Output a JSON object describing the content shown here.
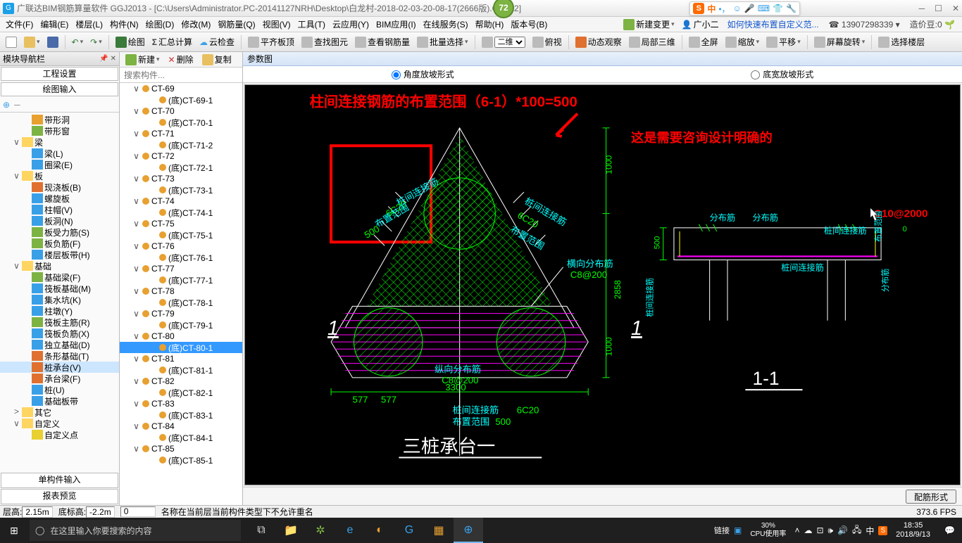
{
  "title": {
    "app": "广联达BIM钢筋算量软件 GGJ2013 - [C:\\Users\\Administrator.PC-20141127NRH\\Desktop\\白龙村-2018-02-03-20-08-17(2666版).GGJ12]",
    "badge": "72"
  },
  "menu": {
    "items": [
      "文件(F)",
      "编辑(E)",
      "楼层(L)",
      "构件(N)",
      "绘图(D)",
      "修改(M)",
      "钢筋量(Q)",
      "视图(V)",
      "工具(T)",
      "云应用(Y)",
      "BIM应用(I)",
      "在线服务(S)",
      "帮助(H)",
      "版本号(B)"
    ],
    "newChange": "新建变更",
    "user": "广小二",
    "helpLink": "如何快速布置自定义范...",
    "phone": "13907298339",
    "beans_label": "造价豆:",
    "beans_value": "0"
  },
  "toolbar": {
    "a": [
      "绘图",
      "汇总计算",
      "云检查",
      "平齐板顶",
      "查找图元",
      "查看钢筋量",
      "批量选择"
    ],
    "b_sel": "二维",
    "b": [
      "俯视",
      "动态观察",
      "局部三维",
      "全屏",
      "缩放",
      "平移",
      "屏幕旋转",
      "选择楼层"
    ]
  },
  "leftPane": {
    "title": "模块导航栏",
    "tab1": "工程设置",
    "tab2": "绘图输入",
    "tree": [
      {
        "d": 2,
        "e": "",
        "i": "#e8a030",
        "t": "带形洞"
      },
      {
        "d": 2,
        "e": "",
        "i": "#7cb342",
        "t": "带形窗"
      },
      {
        "d": 1,
        "e": "∨",
        "i": "#ffd561",
        "t": "梁"
      },
      {
        "d": 2,
        "e": "",
        "i": "#39a0e8",
        "t": "梁(L)"
      },
      {
        "d": 2,
        "e": "",
        "i": "#39a0e8",
        "t": "圈梁(E)"
      },
      {
        "d": 1,
        "e": "∨",
        "i": "#ffd561",
        "t": "板"
      },
      {
        "d": 2,
        "e": "",
        "i": "#e07030",
        "t": "现浇板(B)"
      },
      {
        "d": 2,
        "e": "",
        "i": "#39a0e8",
        "t": "螺旋板"
      },
      {
        "d": 2,
        "e": "",
        "i": "#39a0e8",
        "t": "柱帽(V)"
      },
      {
        "d": 2,
        "e": "",
        "i": "#39a0e8",
        "t": "板洞(N)"
      },
      {
        "d": 2,
        "e": "",
        "i": "#7cb342",
        "t": "板受力筋(S)"
      },
      {
        "d": 2,
        "e": "",
        "i": "#7cb342",
        "t": "板负筋(F)"
      },
      {
        "d": 2,
        "e": "",
        "i": "#39a0e8",
        "t": "楼层板带(H)"
      },
      {
        "d": 1,
        "e": "∨",
        "i": "#ffd561",
        "t": "基础"
      },
      {
        "d": 2,
        "e": "",
        "i": "#7cb342",
        "t": "基础梁(F)"
      },
      {
        "d": 2,
        "e": "",
        "i": "#39a0e8",
        "t": "筏板基础(M)"
      },
      {
        "d": 2,
        "e": "",
        "i": "#39a0e8",
        "t": "集水坑(K)"
      },
      {
        "d": 2,
        "e": "",
        "i": "#39a0e8",
        "t": "柱墩(Y)"
      },
      {
        "d": 2,
        "e": "",
        "i": "#7cb342",
        "t": "筏板主筋(R)"
      },
      {
        "d": 2,
        "e": "",
        "i": "#39a0e8",
        "t": "筏板负筋(X)"
      },
      {
        "d": 2,
        "e": "",
        "i": "#39a0e8",
        "t": "独立基础(D)"
      },
      {
        "d": 2,
        "e": "",
        "i": "#e07030",
        "t": "条形基础(T)"
      },
      {
        "d": 2,
        "e": "",
        "i": "#e07030",
        "t": "桩承台(V)",
        "sel": true
      },
      {
        "d": 2,
        "e": "",
        "i": "#e07030",
        "t": "承台梁(F)"
      },
      {
        "d": 2,
        "e": "",
        "i": "#39a0e8",
        "t": "桩(U)"
      },
      {
        "d": 2,
        "e": "",
        "i": "#39a0e8",
        "t": "基础板带"
      },
      {
        "d": 1,
        "e": ">",
        "i": "#ffd561",
        "t": "其它"
      },
      {
        "d": 1,
        "e": "∨",
        "i": "#ffd561",
        "t": "自定义"
      },
      {
        "d": 2,
        "e": "",
        "i": "#e8d030",
        "t": "自定义点"
      }
    ],
    "bottomTabs": [
      "单构件输入",
      "报表预览"
    ]
  },
  "midPane": {
    "tb": {
      "new": "新建",
      "del": "删除",
      "copy": "复制"
    },
    "searchPlaceholder": "搜索构件...",
    "items": [
      {
        "d": 0,
        "e": "∨",
        "t": "CT-69"
      },
      {
        "d": 1,
        "e": "",
        "t": "(底)CT-69-1"
      },
      {
        "d": 0,
        "e": "∨",
        "t": "CT-70"
      },
      {
        "d": 1,
        "e": "",
        "t": "(底)CT-70-1"
      },
      {
        "d": 0,
        "e": "∨",
        "t": "CT-71"
      },
      {
        "d": 1,
        "e": "",
        "t": "(底)CT-71-2"
      },
      {
        "d": 0,
        "e": "∨",
        "t": "CT-72"
      },
      {
        "d": 1,
        "e": "",
        "t": "(底)CT-72-1"
      },
      {
        "d": 0,
        "e": "∨",
        "t": "CT-73"
      },
      {
        "d": 1,
        "e": "",
        "t": "(底)CT-73-1"
      },
      {
        "d": 0,
        "e": "∨",
        "t": "CT-74"
      },
      {
        "d": 1,
        "e": "",
        "t": "(底)CT-74-1"
      },
      {
        "d": 0,
        "e": "∨",
        "t": "CT-75"
      },
      {
        "d": 1,
        "e": "",
        "t": "(底)CT-75-1"
      },
      {
        "d": 0,
        "e": "∨",
        "t": "CT-76"
      },
      {
        "d": 1,
        "e": "",
        "t": "(底)CT-76-1"
      },
      {
        "d": 0,
        "e": "∨",
        "t": "CT-77"
      },
      {
        "d": 1,
        "e": "",
        "t": "(底)CT-77-1"
      },
      {
        "d": 0,
        "e": "∨",
        "t": "CT-78"
      },
      {
        "d": 1,
        "e": "",
        "t": "(底)CT-78-1"
      },
      {
        "d": 0,
        "e": "∨",
        "t": "CT-79"
      },
      {
        "d": 1,
        "e": "",
        "t": "(底)CT-79-1"
      },
      {
        "d": 0,
        "e": "∨",
        "t": "CT-80"
      },
      {
        "d": 1,
        "e": "",
        "t": "(底)CT-80-1",
        "sel": true
      },
      {
        "d": 0,
        "e": "∨",
        "t": "CT-81"
      },
      {
        "d": 1,
        "e": "",
        "t": "(底)CT-81-1"
      },
      {
        "d": 0,
        "e": "∨",
        "t": "CT-82"
      },
      {
        "d": 1,
        "e": "",
        "t": "(底)CT-82-1"
      },
      {
        "d": 0,
        "e": "∨",
        "t": "CT-83"
      },
      {
        "d": 1,
        "e": "",
        "t": "(底)CT-83-1"
      },
      {
        "d": 0,
        "e": "∨",
        "t": "CT-84"
      },
      {
        "d": 1,
        "e": "",
        "t": "(底)CT-84-1"
      },
      {
        "d": 0,
        "e": "∨",
        "t": "CT-85"
      },
      {
        "d": 1,
        "e": "",
        "t": "(底)CT-85-1"
      }
    ]
  },
  "canvas": {
    "header": "参数图",
    "radio1": "角度放坡形式",
    "radio2": "底宽放坡形式",
    "footerBtn": "配筋形式",
    "annotations": {
      "redTop": "柱间连接钢筋的布置范围（6-1）*100=500",
      "redRight": "这是需要咨询设计明确的",
      "leftLabel1": "桩间连接筋",
      "leftLabel2": "6C20",
      "leftLabel3": "布置范围",
      "leftLabel4": "500",
      "rightLabel1": "桩间连接筋",
      "rightLabel2": "6C20",
      "rightLabel3": "布置范围",
      "hLabel": "横向分布筋",
      "hLabel2": "C8@200",
      "vLabel": "纵向分布筋",
      "vLabel2": "C8@200",
      "bottomLabel1": "桩间连接筋",
      "bottomLabel1b": "6C20",
      "bottomLabel2": "布置范围",
      "bottomLabel2b": "500",
      "dim3300": "3300",
      "dim577a": "577",
      "dim577b": "577",
      "dim1000a": "1000",
      "dim1000b": "1000",
      "dim2858": "2858",
      "title1": "三桩承台一",
      "sec1": "1",
      "title2": "1-1",
      "secDim500": "500",
      "secDim0": "0",
      "secFenbu": "分布筋",
      "secZhuangjian": "桩间连接筋",
      "secC10": "C10@2000",
      "secV1": "桩间连接筋",
      "secV2": "分布筋",
      "secV3": "布置范围"
    },
    "colors": {
      "red": "#ff0000",
      "green": "#00ff00",
      "cyan": "#00ffff",
      "white": "#ffffff",
      "magenta": "#ff00ff",
      "yellow": "#ffff00",
      "orange": "#ff8800"
    }
  },
  "status": {
    "floor_label": "层高:",
    "floor": "2.15m",
    "bottom_label": "底标高:",
    "bottom": "-2.2m",
    "zero": "0",
    "msg": "名称在当前层当前构件类型下不允许重名",
    "fps": "373.6 FPS"
  },
  "taskbar": {
    "searchPlaceholder": "在这里输入你要搜索的内容",
    "link": "链接",
    "cpu_pct": "30%",
    "cpu_label": "CPU使用率",
    "time": "18:35",
    "date": "2018/9/13"
  },
  "ime": {
    "label": "中"
  }
}
